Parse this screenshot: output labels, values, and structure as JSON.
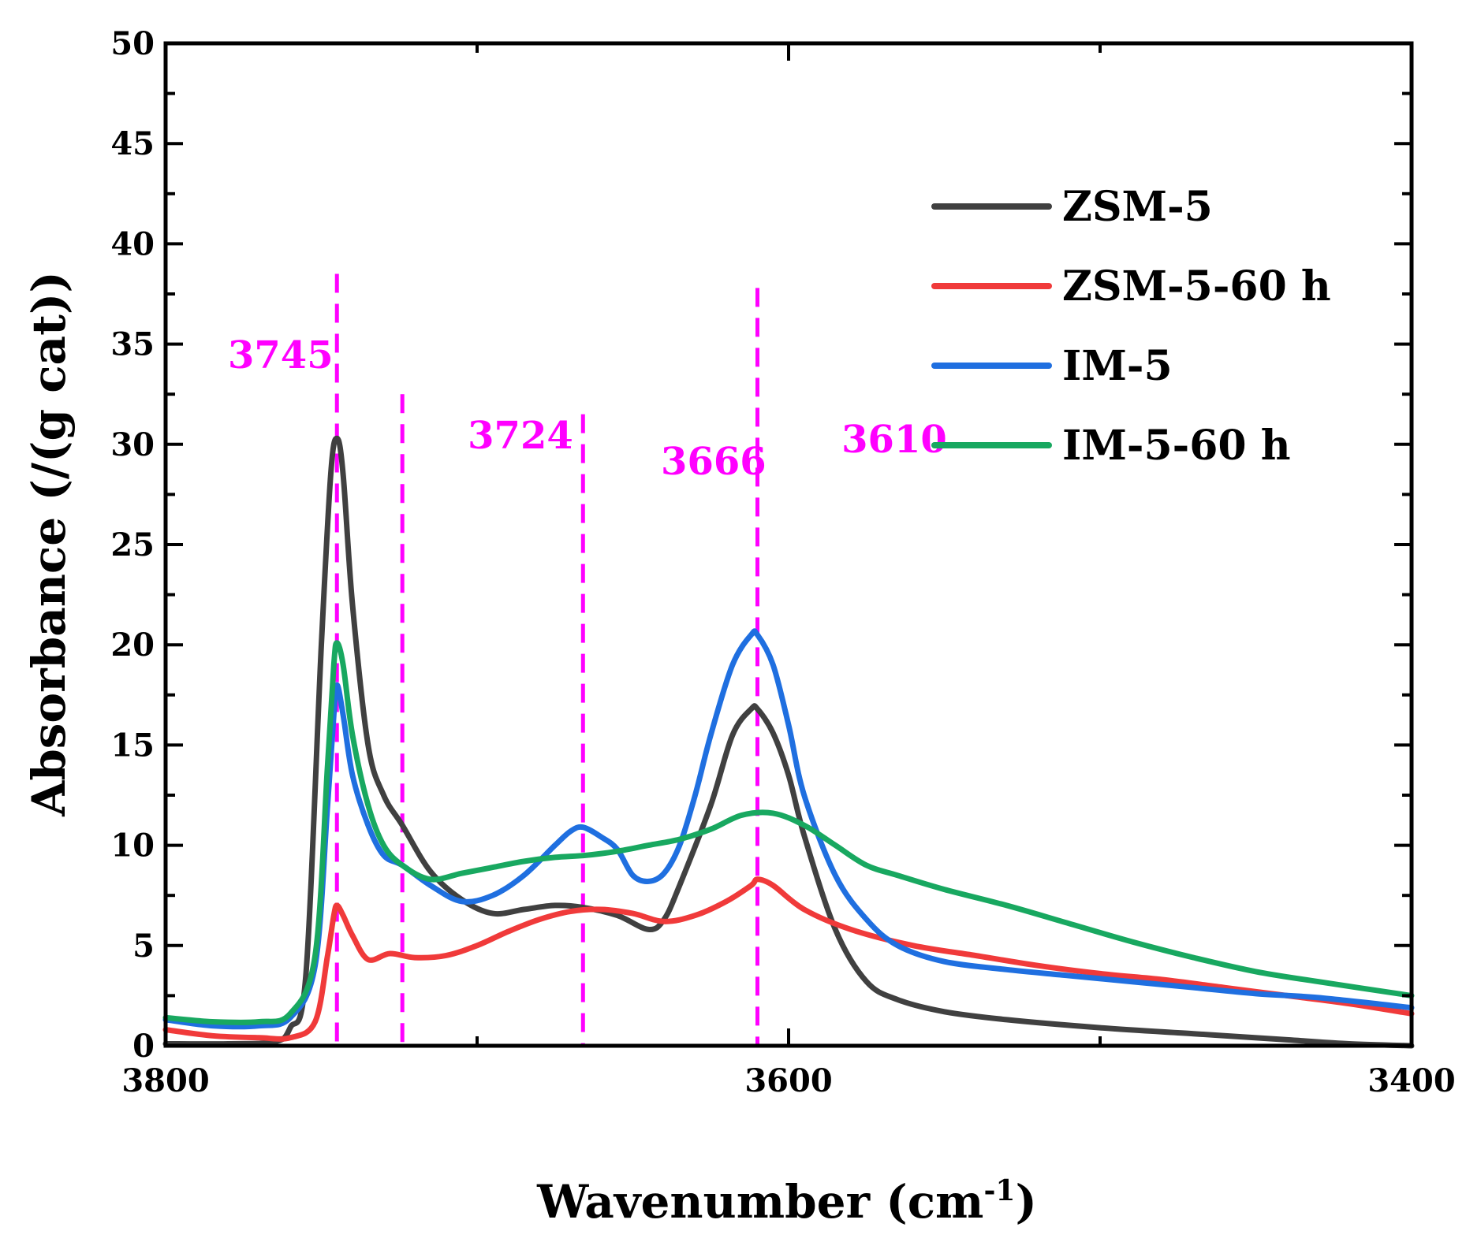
{
  "chart_data": {
    "type": "line",
    "title": "",
    "xlabel": "Wavenumber (cm",
    "xlabel_sup": "-1",
    "xlabel_end": ")",
    "ylabel": "Absorbance (/(g cat))",
    "xlim": [
      3800,
      3400
    ],
    "ylim": [
      0,
      50
    ],
    "x_ticks": [
      3800,
      3600,
      3400
    ],
    "x_minor_ticks": [
      3700,
      3500
    ],
    "y_ticks": [
      0,
      5,
      10,
      15,
      20,
      25,
      30,
      35,
      40,
      45,
      50
    ],
    "legend_position": "top-right",
    "annotations": [
      {
        "label": "3745",
        "x": 3745,
        "y_top": 38.5,
        "label_x": 3780,
        "label_y": 33.8
      },
      {
        "label": "3724",
        "x": 3724,
        "y_top": 32.5,
        "label_x": 3703,
        "label_y": 29.8
      },
      {
        "label": "3666",
        "x": 3666,
        "y_top": 31.5,
        "label_x": 3641,
        "label_y": 28.5
      },
      {
        "label": "3610",
        "x": 3610,
        "y_top": 37.8,
        "label_x": 3583,
        "label_y": 29.6
      }
    ],
    "annotation_color": "#ff00ff",
    "series": [
      {
        "name": "ZSM-5",
        "color": "#404040",
        "x": [
          3800,
          3780,
          3765,
          3760,
          3755,
          3750,
          3747,
          3745,
          3743,
          3740,
          3735,
          3730,
          3724,
          3715,
          3705,
          3695,
          3685,
          3675,
          3666,
          3655,
          3645,
          3640,
          3635,
          3625,
          3618,
          3612,
          3610,
          3605,
          3600,
          3595,
          3585,
          3575,
          3565,
          3550,
          3530,
          3500,
          3470,
          3440,
          3420,
          3400
        ],
        "y": [
          0.1,
          0.1,
          0.2,
          0.9,
          3.5,
          20.0,
          28.5,
          30.3,
          28.5,
          22.0,
          15.0,
          12.5,
          11.0,
          8.7,
          7.3,
          6.6,
          6.8,
          7.0,
          6.9,
          6.5,
          5.8,
          6.3,
          8.0,
          12.0,
          15.5,
          16.8,
          16.8,
          15.6,
          13.5,
          10.5,
          5.8,
          3.2,
          2.3,
          1.7,
          1.3,
          0.9,
          0.6,
          0.3,
          0.1,
          0.0
        ]
      },
      {
        "name": "ZSM-5-60 h",
        "color": "#f03a3a",
        "x": [
          3800,
          3785,
          3770,
          3760,
          3752,
          3748,
          3746,
          3745,
          3743,
          3740,
          3735,
          3728,
          3720,
          3710,
          3700,
          3690,
          3680,
          3670,
          3660,
          3650,
          3640,
          3630,
          3620,
          3612,
          3610,
          3605,
          3595,
          3580,
          3560,
          3540,
          3520,
          3500,
          3480,
          3460,
          3440,
          3420,
          3400
        ],
        "y": [
          0.8,
          0.5,
          0.4,
          0.4,
          1.2,
          4.5,
          6.5,
          7.0,
          6.5,
          5.5,
          4.3,
          4.6,
          4.4,
          4.5,
          5.0,
          5.7,
          6.3,
          6.7,
          6.8,
          6.6,
          6.2,
          6.5,
          7.2,
          8.0,
          8.3,
          8.0,
          6.8,
          5.8,
          5.0,
          4.5,
          4.0,
          3.6,
          3.3,
          2.9,
          2.5,
          2.1,
          1.6
        ]
      },
      {
        "name": "IM-5",
        "color": "#1f6fe0",
        "x": [
          3800,
          3785,
          3770,
          3760,
          3752,
          3748,
          3746,
          3745,
          3743,
          3740,
          3735,
          3730,
          3724,
          3715,
          3705,
          3695,
          3685,
          3675,
          3670,
          3666,
          3660,
          3655,
          3650,
          3645,
          3640,
          3635,
          3630,
          3625,
          3618,
          3612,
          3610,
          3605,
          3600,
          3595,
          3585,
          3575,
          3565,
          3550,
          3530,
          3510,
          3490,
          3470,
          3450,
          3430,
          3400
        ],
        "y": [
          1.3,
          1.0,
          1.0,
          1.4,
          4.0,
          12.0,
          16.5,
          18.0,
          16.5,
          13.5,
          11.0,
          9.5,
          9.0,
          8.0,
          7.2,
          7.5,
          8.5,
          10.0,
          10.7,
          10.9,
          10.4,
          9.8,
          8.5,
          8.2,
          8.6,
          10.0,
          12.5,
          15.5,
          19.0,
          20.5,
          20.5,
          19.0,
          16.0,
          12.5,
          8.5,
          6.3,
          5.0,
          4.2,
          3.8,
          3.5,
          3.2,
          2.9,
          2.6,
          2.4,
          1.9
        ]
      },
      {
        "name": "IM-5-60 h",
        "color": "#18a860",
        "x": [
          3800,
          3785,
          3770,
          3760,
          3752,
          3748,
          3746,
          3745,
          3743,
          3740,
          3735,
          3730,
          3724,
          3715,
          3705,
          3695,
          3685,
          3675,
          3665,
          3655,
          3645,
          3635,
          3625,
          3615,
          3605,
          3595,
          3585,
          3575,
          3565,
          3550,
          3530,
          3510,
          3490,
          3470,
          3450,
          3430,
          3400
        ],
        "y": [
          1.4,
          1.2,
          1.2,
          1.6,
          4.5,
          14.0,
          19.0,
          20.1,
          19.0,
          15.5,
          12.0,
          10.0,
          9.0,
          8.3,
          8.6,
          8.9,
          9.2,
          9.4,
          9.5,
          9.7,
          10.0,
          10.3,
          10.8,
          11.5,
          11.6,
          11.0,
          10.0,
          9.0,
          8.5,
          7.8,
          7.0,
          6.1,
          5.2,
          4.4,
          3.7,
          3.2,
          2.5
        ]
      }
    ]
  }
}
